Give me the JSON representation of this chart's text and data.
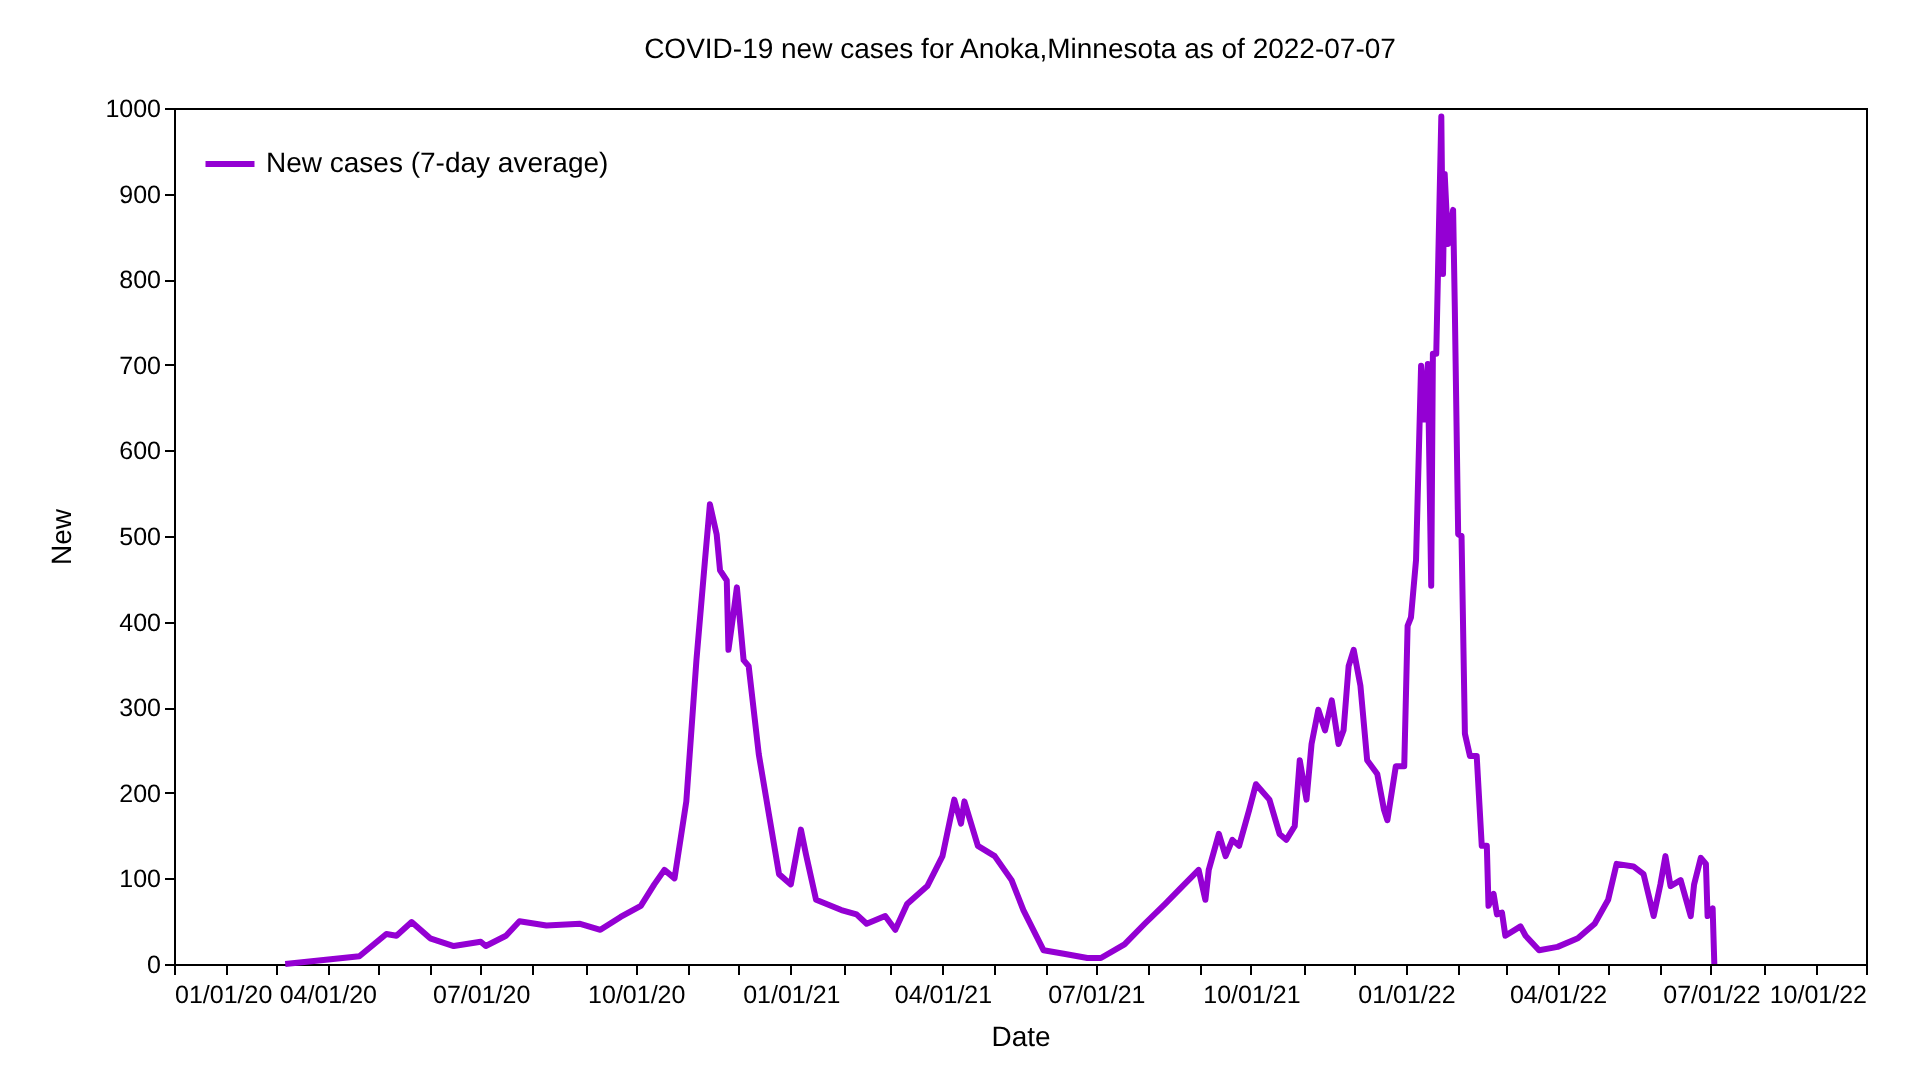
{
  "chart_data": {
    "type": "line",
    "title": "COVID-19 new cases for Anoka,Minnesota as of 2022-07-07",
    "xlabel": "Date",
    "ylabel": "New",
    "legend": "top left",
    "grid": false,
    "line_style": "solid",
    "marker": "none",
    "xlim": [
      "2020-01-01",
      "2022-10-01"
    ],
    "xticks": [
      {
        "value": "2020-01-01",
        "label": "01/01/20"
      },
      {
        "value": "2020-02-01",
        "label": null
      },
      {
        "value": "2020-03-01",
        "label": null
      },
      {
        "value": "2020-04-01",
        "label": "04/01/20"
      },
      {
        "value": "2020-05-01",
        "label": null
      },
      {
        "value": "2020-06-01",
        "label": null
      },
      {
        "value": "2020-07-01",
        "label": "07/01/20"
      },
      {
        "value": "2020-08-01",
        "label": null
      },
      {
        "value": "2020-09-01",
        "label": null
      },
      {
        "value": "2020-10-01",
        "label": "10/01/20"
      },
      {
        "value": "2020-11-01",
        "label": null
      },
      {
        "value": "2020-12-01",
        "label": null
      },
      {
        "value": "2021-01-01",
        "label": "01/01/21"
      },
      {
        "value": "2021-02-01",
        "label": null
      },
      {
        "value": "2021-03-01",
        "label": null
      },
      {
        "value": "2021-04-01",
        "label": "04/01/21"
      },
      {
        "value": "2021-05-01",
        "label": null
      },
      {
        "value": "2021-06-01",
        "label": null
      },
      {
        "value": "2021-07-01",
        "label": "07/01/21"
      },
      {
        "value": "2021-08-01",
        "label": null
      },
      {
        "value": "2021-09-01",
        "label": null
      },
      {
        "value": "2021-10-01",
        "label": "10/01/21"
      },
      {
        "value": "2021-11-01",
        "label": null
      },
      {
        "value": "2021-12-01",
        "label": null
      },
      {
        "value": "2022-01-01",
        "label": "01/01/22"
      },
      {
        "value": "2022-02-01",
        "label": null
      },
      {
        "value": "2022-03-01",
        "label": null
      },
      {
        "value": "2022-04-01",
        "label": "04/01/22"
      },
      {
        "value": "2022-05-01",
        "label": null
      },
      {
        "value": "2022-06-01",
        "label": null
      },
      {
        "value": "2022-07-01",
        "label": "07/01/22"
      },
      {
        "value": "2022-08-01",
        "label": null
      },
      {
        "value": "2022-09-01",
        "label": null
      },
      {
        "value": "2022-10-01",
        "label": "10/01/22"
      }
    ],
    "ylim": [
      0,
      1000
    ],
    "yticks": [
      0,
      100,
      200,
      300,
      400,
      500,
      600,
      700,
      800,
      900,
      1000
    ],
    "x": [
      "2020-03-07",
      "2020-04-20",
      "2020-05-06",
      "2020-05-12",
      "2020-05-21",
      "2020-06-01",
      "2020-06-15",
      "2020-07-01",
      "2020-07-04",
      "2020-07-16",
      "2020-07-24",
      "2020-08-09",
      "2020-08-29",
      "2020-09-10",
      "2020-09-22",
      "2020-10-04",
      "2020-10-12",
      "2020-10-18",
      "2020-10-24",
      "2020-10-31",
      "2020-11-06",
      "2020-11-11",
      "2020-11-14",
      "2020-11-18",
      "2020-11-20",
      "2020-11-24",
      "2020-11-25",
      "2020-11-28",
      "2020-11-30",
      "2020-12-04",
      "2020-12-07",
      "2020-12-13",
      "2020-12-19",
      "2020-12-25",
      "2021-01-01",
      "2021-01-07",
      "2021-01-10",
      "2021-01-16",
      "2021-01-31",
      "2021-02-09",
      "2021-02-15",
      "2021-02-26",
      "2021-03-04",
      "2021-03-11",
      "2021-03-23",
      "2021-04-01",
      "2021-04-08",
      "2021-04-12",
      "2021-04-14",
      "2021-04-22",
      "2021-05-02",
      "2021-05-12",
      "2021-05-19",
      "2021-05-31",
      "2021-06-12",
      "2021-06-26",
      "2021-07-04",
      "2021-07-18",
      "2021-07-30",
      "2021-08-11",
      "2021-08-19",
      "2021-08-31",
      "2021-09-04",
      "2021-09-06",
      "2021-09-12",
      "2021-09-16",
      "2021-09-20",
      "2021-09-24",
      "2021-09-30",
      "2021-10-04",
      "2021-10-12",
      "2021-10-18",
      "2021-10-22",
      "2021-10-27",
      "2021-10-30",
      "2021-11-03",
      "2021-11-06",
      "2021-11-10",
      "2021-11-14",
      "2021-11-18",
      "2021-11-22",
      "2021-11-25",
      "2021-11-28",
      "2021-12-01",
      "2021-12-05",
      "2021-12-09",
      "2021-12-15",
      "2021-12-19",
      "2021-12-21",
      "2021-12-26",
      "2021-12-31",
      "2022-01-02",
      "2022-01-04",
      "2022-01-07",
      "2022-01-10",
      "2022-01-12",
      "2022-01-14",
      "2022-01-16",
      "2022-01-17",
      "2022-01-19",
      "2022-01-22",
      "2022-01-23",
      "2022-01-24",
      "2022-01-26",
      "2022-01-29",
      "2022-01-30",
      "2022-02-01",
      "2022-02-03",
      "2022-02-05",
      "2022-02-08",
      "2022-02-12",
      "2022-02-15",
      "2022-02-18",
      "2022-02-19",
      "2022-02-22",
      "2022-02-24",
      "2022-02-27",
      "2022-03-01",
      "2022-03-10",
      "2022-03-13",
      "2022-03-21",
      "2022-04-01",
      "2022-04-13",
      "2022-04-23",
      "2022-05-01",
      "2022-05-06",
      "2022-05-16",
      "2022-05-22",
      "2022-05-28",
      "2022-06-01",
      "2022-06-04",
      "2022-06-07",
      "2022-06-13",
      "2022-06-19",
      "2022-06-21",
      "2022-06-25",
      "2022-06-28",
      "2022-06-29",
      "2022-07-02",
      "2022-07-03"
    ],
    "series": [
      {
        "name": "New cases (7-day average)",
        "color": "#9400d3",
        "values": [
          0,
          9,
          35,
          33,
          49,
          30,
          21,
          26,
          21,
          33,
          50,
          45,
          47,
          40,
          55,
          68,
          93,
          110,
          100,
          190,
          355,
          470,
          537,
          502,
          460,
          448,
          367,
          410,
          440,
          355,
          348,
          245,
          175,
          105,
          93,
          157,
          128,
          75,
          63,
          58,
          47,
          56,
          40,
          70,
          91,
          126,
          192,
          164,
          190,
          138,
          126,
          98,
          63,
          16,
          12,
          7,
          7,
          23,
          47,
          70,
          86,
          110,
          75,
          110,
          152,
          126,
          145,
          138,
          180,
          210,
          192,
          152,
          145,
          161,
          238,
          192,
          257,
          297,
          273,
          308,
          257,
          273,
          348,
          367,
          325,
          238,
          222,
          180,
          168,
          231,
          231,
          395,
          405,
          472,
          699,
          636,
          701,
          442,
          713,
          713,
          990,
          806,
          923,
          841,
          881,
          768,
          502,
          500,
          269,
          243,
          243,
          138,
          138,
          68,
          82,
          58,
          60,
          33,
          44,
          33,
          16,
          20,
          30,
          47,
          75,
          117,
          114,
          105,
          56,
          93,
          126,
          91,
          98,
          56,
          93,
          124,
          117,
          56,
          65,
          0
        ]
      }
    ]
  }
}
